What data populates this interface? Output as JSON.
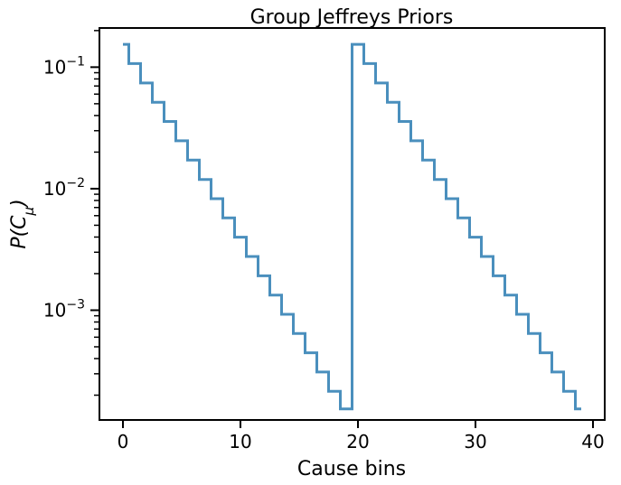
{
  "chart_data": {
    "type": "line",
    "drawstyle": "steps-mid",
    "title": "Group Jeffreys Priors",
    "xlabel": "Cause bins",
    "ylabel": "P(C_μ)",
    "ylabel_parts": {
      "main": "P(C",
      "sub": "μ",
      "close": ")"
    },
    "xlim": [
      -2,
      41
    ],
    "ylim": [
      0.000125,
      0.21
    ],
    "yscale": "log",
    "xticks": [
      0,
      10,
      20,
      30,
      40
    ],
    "xtick_labels": [
      "0",
      "10",
      "20",
      "30",
      "40"
    ],
    "yticks": [
      0.001,
      0.01,
      0.1
    ],
    "ytick_labels": [
      {
        "base": "10",
        "exp": "−3"
      },
      {
        "base": "10",
        "exp": "−2"
      },
      {
        "base": "10",
        "exp": "−1"
      }
    ],
    "grid": false,
    "line_color": "#4a8fbd",
    "series": [
      {
        "x": [
          0,
          1,
          2,
          3,
          4,
          5,
          6,
          7,
          8,
          9,
          10,
          11,
          12,
          13,
          14,
          15,
          16,
          17,
          18,
          19,
          20,
          21,
          22,
          23,
          24,
          25,
          26,
          27,
          28,
          29,
          30,
          31,
          32,
          33,
          34,
          35,
          36,
          37,
          38,
          39
        ],
        "values": [
          0.154,
          0.107,
          0.0741,
          0.0514,
          0.0357,
          0.0248,
          0.0172,
          0.0119,
          0.00828,
          0.00575,
          0.00399,
          0.00277,
          0.00192,
          0.00133,
          0.000926,
          0.000643,
          0.000446,
          0.00031,
          0.000215,
          0.000154,
          0.154,
          0.107,
          0.0741,
          0.0514,
          0.0357,
          0.0248,
          0.0172,
          0.0119,
          0.00828,
          0.00575,
          0.00399,
          0.00277,
          0.00192,
          0.00133,
          0.000926,
          0.000643,
          0.000446,
          0.00031,
          0.000215,
          0.000154
        ]
      }
    ]
  }
}
